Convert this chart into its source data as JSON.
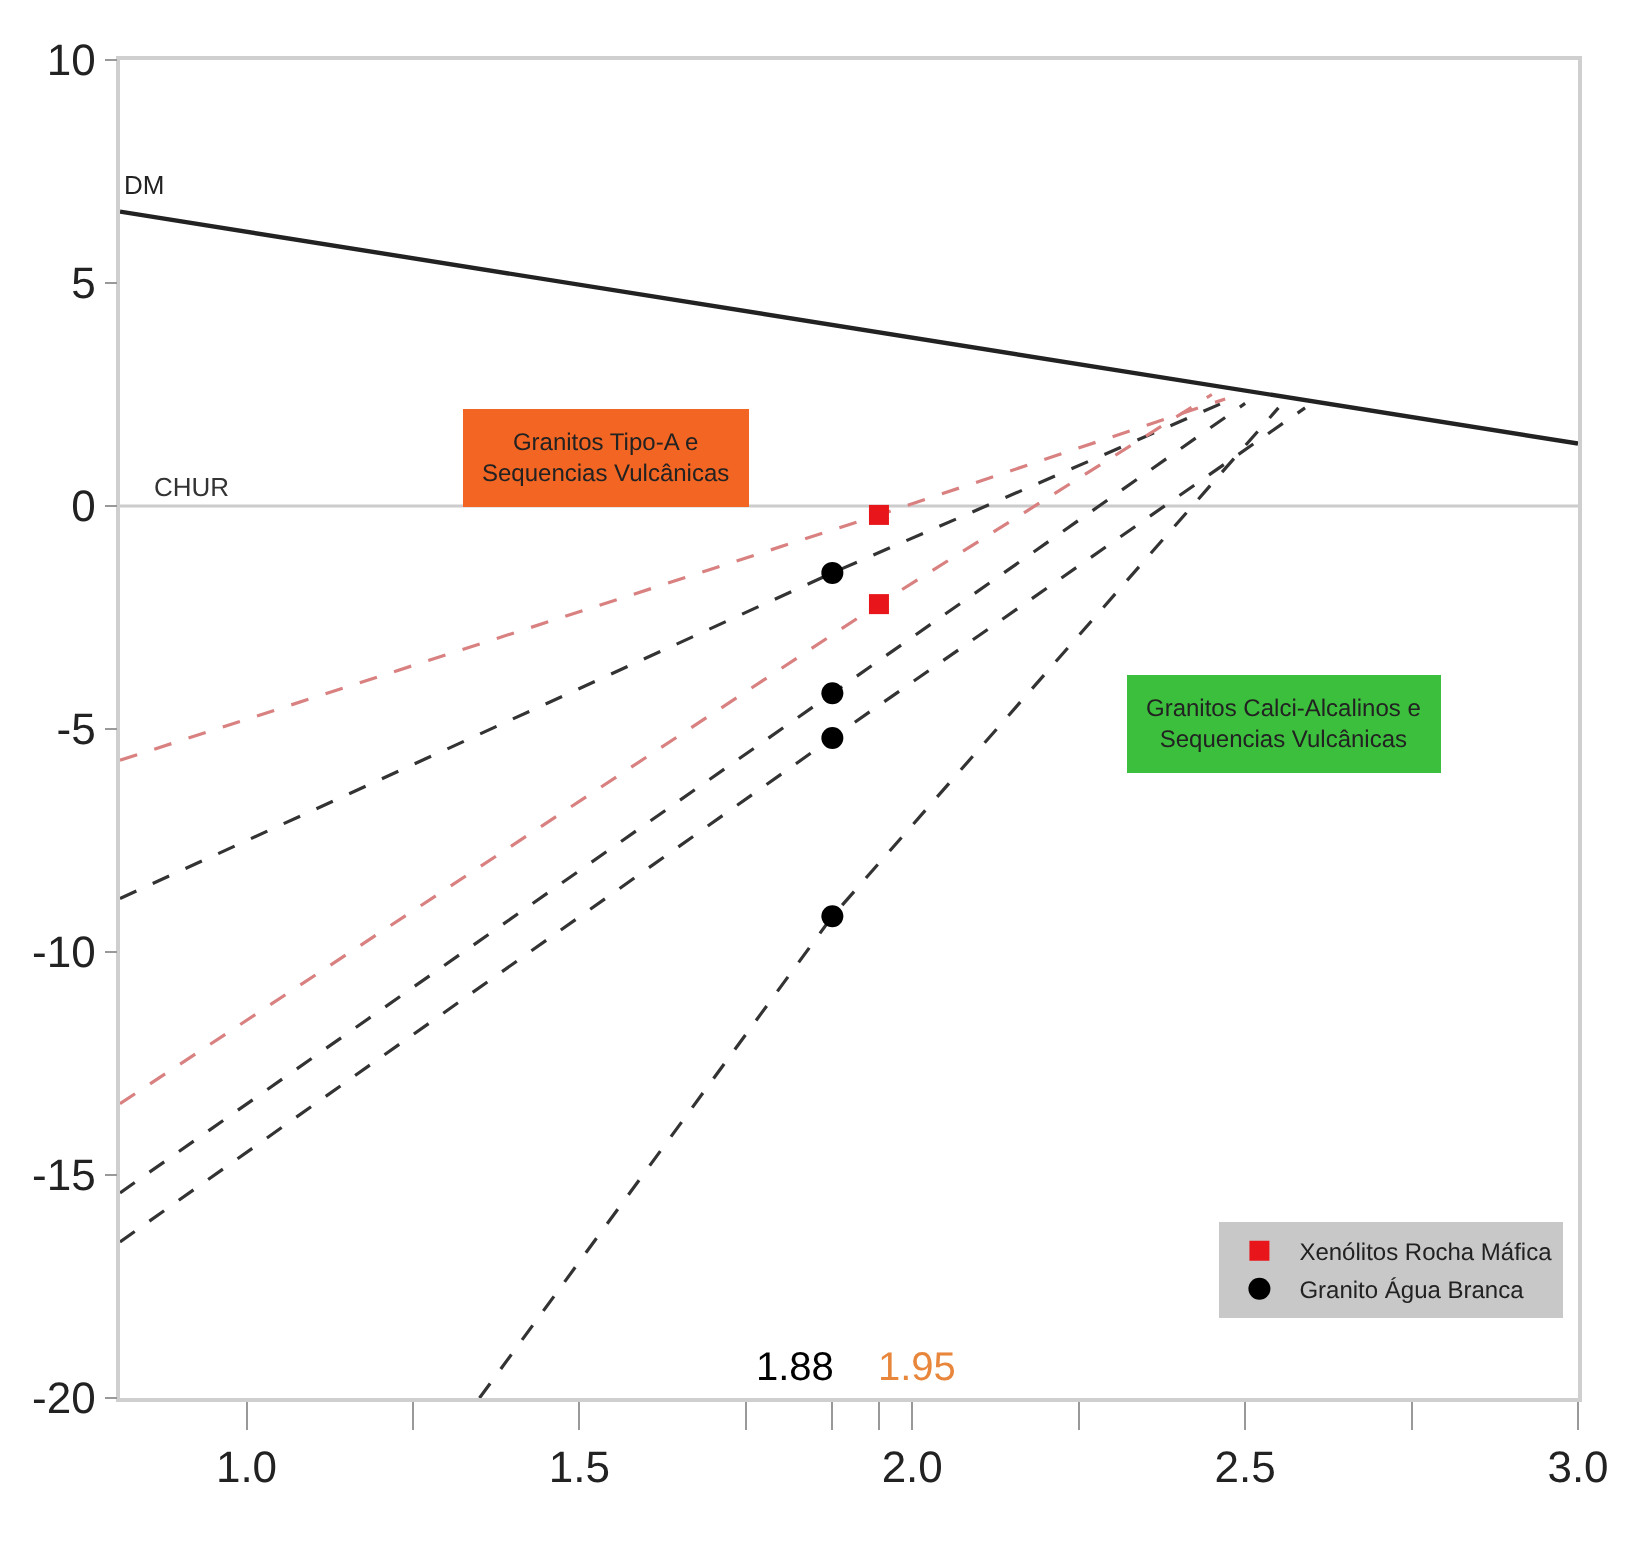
{
  "chart_data": {
    "type": "line",
    "xlim": [
      0.81,
      3.0
    ],
    "ylim": [
      -20,
      10
    ],
    "xticks": [
      {
        "value": 1.0,
        "label": "1.0"
      },
      {
        "value": 1.25,
        "label": null
      },
      {
        "value": 1.5,
        "label": "1.5"
      },
      {
        "value": 1.75,
        "label": null
      },
      {
        "value": 1.88,
        "label": null
      },
      {
        "value": 1.95,
        "label": null
      },
      {
        "value": 2.0,
        "label": "2.0"
      },
      {
        "value": 2.25,
        "label": null
      },
      {
        "value": 2.5,
        "label": "2.5"
      },
      {
        "value": 2.75,
        "label": null
      },
      {
        "value": 3.0,
        "label": "3.0"
      }
    ],
    "yticks": [
      10,
      5,
      0,
      -5,
      -10,
      -15,
      -20
    ],
    "grid": false,
    "legend": "bottom right",
    "ref_lines": [
      {
        "axis": "y",
        "value": 0,
        "label": "CHUR",
        "color": "#cccccc"
      }
    ],
    "series": [
      {
        "name": "DM",
        "color": "#222222",
        "line_style": "solid",
        "x": [
          0.81,
          3.0
        ],
        "values": [
          6.6,
          1.4
        ]
      },
      {
        "type": "line",
        "color": "#d98080",
        "line_style": "dashed",
        "x": [
          0.81,
          1.95,
          2.47
        ],
        "values": [
          -5.7,
          -0.2,
          2.4
        ]
      },
      {
        "type": "line",
        "color": "#333333",
        "line_style": "dashed",
        "x": [
          0.81,
          1.88,
          2.48
        ],
        "values": [
          -8.8,
          -1.5,
          2.4
        ]
      },
      {
        "type": "line",
        "color": "#d98080",
        "line_style": "dashed",
        "x": [
          0.81,
          1.95,
          2.45
        ],
        "values": [
          -13.4,
          -2.2,
          2.5
        ]
      },
      {
        "type": "line",
        "color": "#333333",
        "line_style": "dashed",
        "x": [
          0.81,
          1.88,
          2.5
        ],
        "values": [
          -15.4,
          -4.2,
          2.3
        ]
      },
      {
        "type": "line",
        "color": "#333333",
        "line_style": "dashed",
        "x": [
          0.81,
          1.88,
          2.59
        ],
        "values": [
          -16.5,
          -5.2,
          2.2
        ]
      },
      {
        "type": "line",
        "color": "#333333",
        "line_style": "dashed",
        "x": [
          1.35,
          1.88,
          2.55
        ],
        "values": [
          -20,
          -9.2,
          2.2
        ]
      },
      {
        "name": "Xenólitos Rocha Máfica",
        "type": "scatter",
        "marker": "square",
        "color": "#e8161b",
        "x": [
          1.95,
          1.95
        ],
        "values": [
          -0.2,
          -2.2
        ]
      },
      {
        "name": "Granito Água Branca",
        "type": "scatter",
        "marker": "circle",
        "color": "#000000",
        "x": [
          1.88,
          1.88,
          1.88,
          1.88
        ],
        "values": [
          -1.5,
          -4.2,
          -5.2,
          -9.2
        ]
      }
    ],
    "annotations": [
      "Granitos Tipo-A e\nSequencias Vulcânicas",
      "Granitos Calci-Alcalinos e\nSequencias Vulcânicas",
      "1.88",
      "1.95"
    ]
  }
}
